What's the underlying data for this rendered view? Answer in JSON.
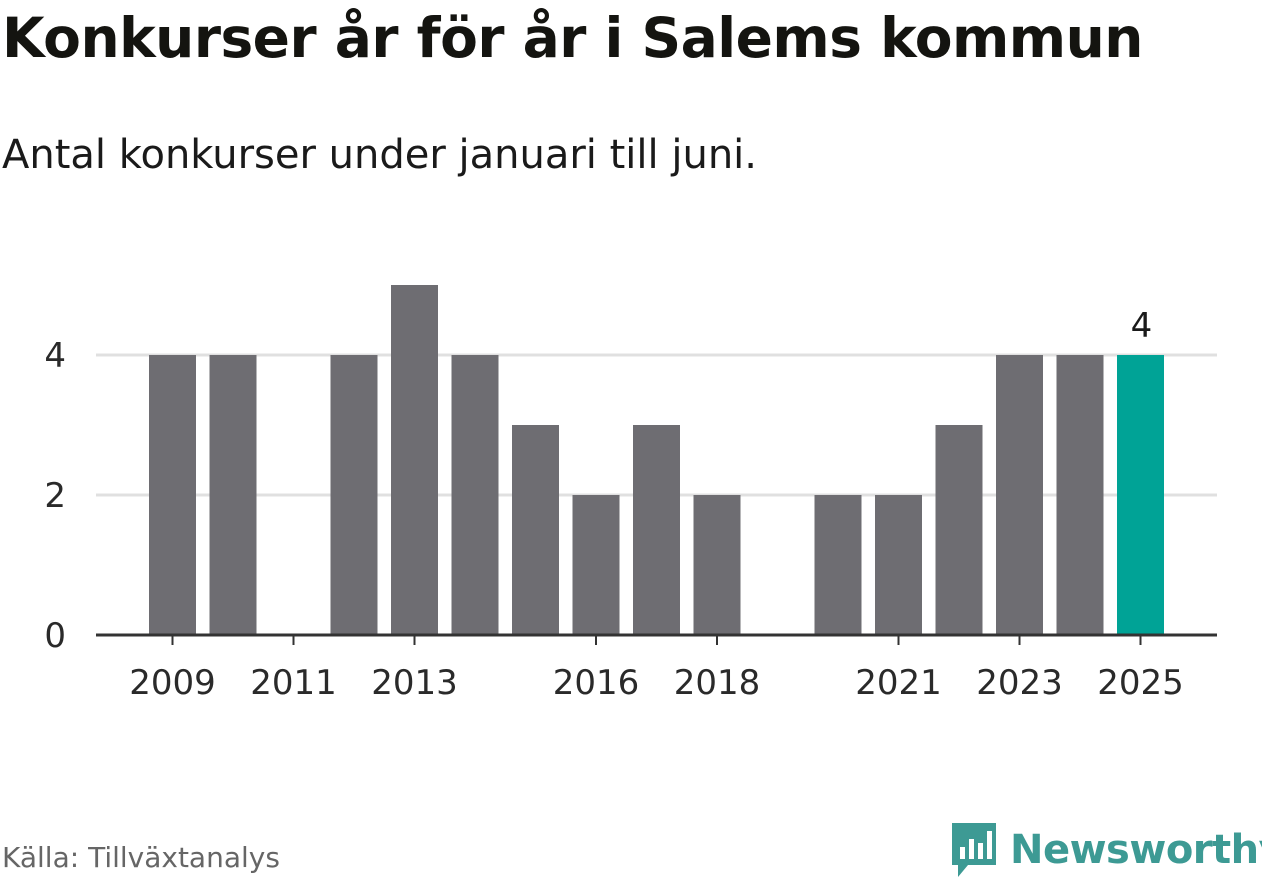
{
  "header": {
    "title": "Konkurser år för år i Salems kommun",
    "subtitle": "Antal konkurser under januari till juni."
  },
  "footer": {
    "source": "Källa: Tillväxtanalys",
    "brand": "Newsworthy",
    "brand_icon": "newsworthy-logo-icon"
  },
  "colors": {
    "bar": "#6e6d72",
    "highlight": "#00a396",
    "grid": "#e0e0e0",
    "axis": "#333333",
    "brand": "#3d9a94"
  },
  "chart_data": {
    "type": "bar",
    "categories": [
      "2009",
      "2010",
      "2011",
      "2012",
      "2013",
      "2014",
      "2015",
      "2016",
      "2017",
      "2018",
      "2019",
      "2020",
      "2021",
      "2022",
      "2023",
      "2024",
      "2025"
    ],
    "values": [
      4,
      4,
      0,
      4,
      5,
      4,
      3,
      2,
      3,
      2,
      0,
      2,
      2,
      3,
      4,
      4,
      4
    ],
    "x_tick_labels": [
      "2009",
      "2011",
      "2013",
      "2016",
      "2018",
      "2021",
      "2023",
      "2025"
    ],
    "y_ticks": [
      0,
      2,
      4
    ],
    "ylim": [
      0,
      5
    ],
    "highlight_category": "2025",
    "data_labels": [
      {
        "category": "2025",
        "text": "4"
      }
    ],
    "grid": true,
    "legend": "none"
  }
}
